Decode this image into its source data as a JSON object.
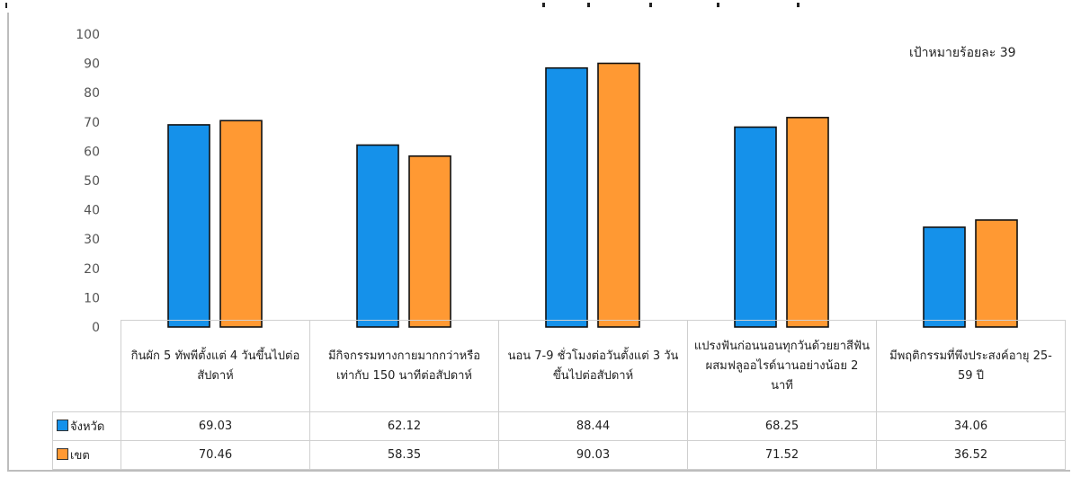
{
  "chart_data": {
    "type": "bar",
    "categories": [
      "กินผัก 5 ทัพพีตั้งแต่ 4 วันขึ้นไปต่อสัปดาห์",
      "มีกิจกรรมทางกายมากกว่าหรือเท่ากับ 150 นาทีต่อสัปดาห์",
      "นอน 7-9 ชั่วโมงต่อวันตั้งแต่ 3 วันขึ้นไปต่อสัปดาห์",
      "แปรงฟันก่อนนอนทุกวันด้วยยาสีฟันผสมฟลูออไรด์นานอย่างน้อย 2 นาที",
      "มีพฤติกรรมที่พึงประสงค์อายุ 25-59 ปี"
    ],
    "series": [
      {
        "name": "จังหวัด",
        "values": [
          69.03,
          62.12,
          88.44,
          68.25,
          34.06
        ],
        "color": "#1591ea"
      },
      {
        "name": "เขต",
        "values": [
          70.46,
          58.35,
          90.03,
          71.52,
          36.52
        ],
        "color": "#ff9933"
      }
    ],
    "value_labels": [
      [
        "69.03",
        "62.12",
        "88.44",
        "68.25",
        "34.06"
      ],
      [
        "70.46",
        "58.35",
        "90.03",
        "71.52",
        "36.52"
      ]
    ],
    "yticks": [
      0,
      10,
      20,
      30,
      40,
      50,
      60,
      70,
      80,
      90,
      100
    ],
    "ylim": [
      0,
      100
    ],
    "annotation": "เป้าหมายร้อยละ 39",
    "legend": "data-table",
    "grid": false
  }
}
